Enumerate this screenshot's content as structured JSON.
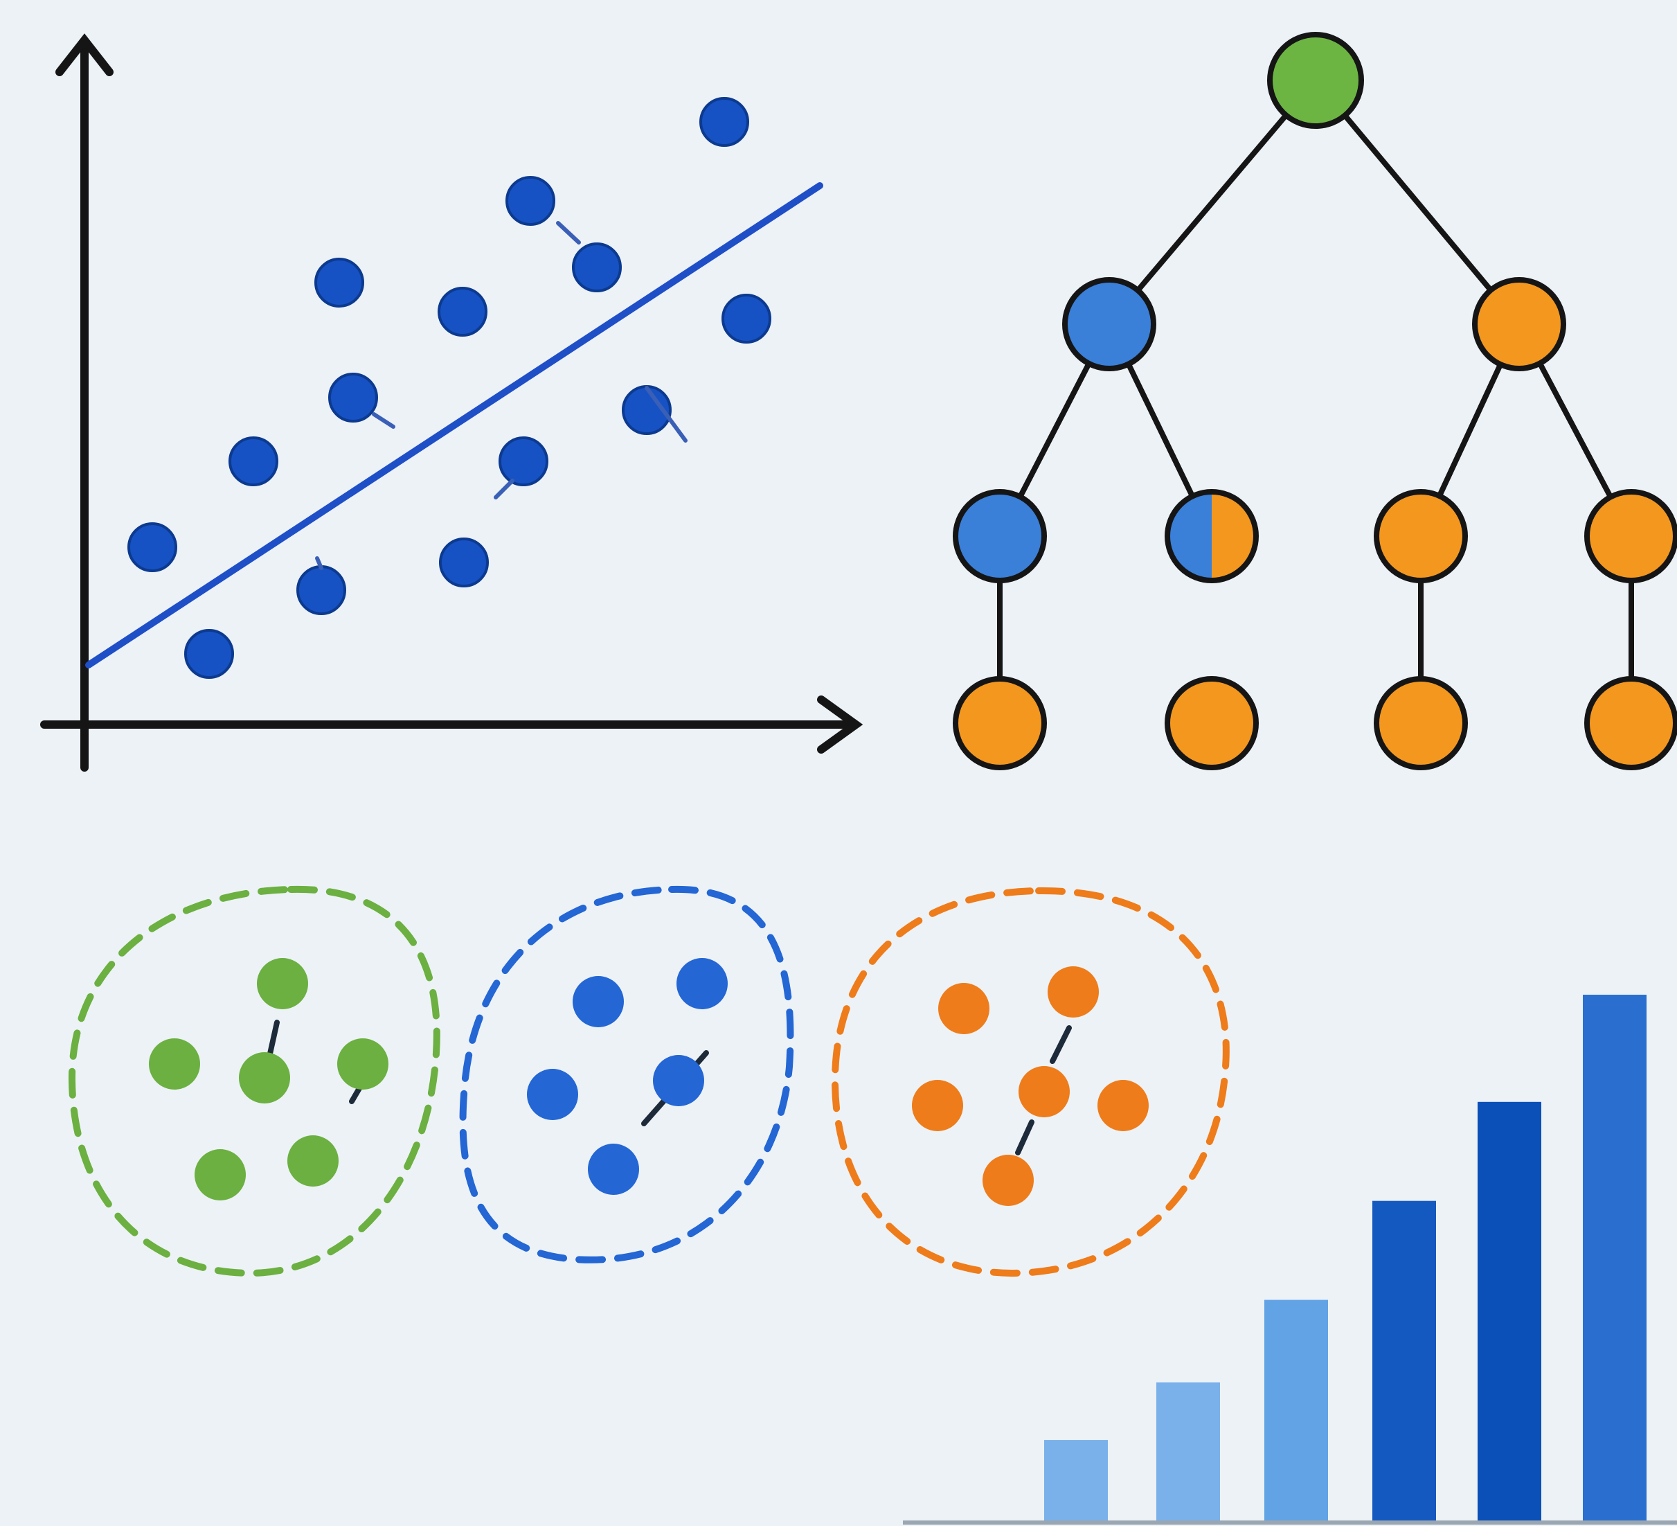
{
  "colors": {
    "background": "#edf2f7",
    "ink": "#151515",
    "blue_point": "#1652c4",
    "regression_line": "#1f4fc7",
    "tree_green": "#6db543",
    "tree_blue": "#3a7fd8",
    "tree_orange": "#f3971f",
    "cluster_green": "#6bb040",
    "cluster_blue": "#2366d4",
    "cluster_orange": "#ee7c1a",
    "bar_light": "#7ab1ea",
    "bar_mid": "#62a3e6",
    "bar_dark": "#1459c0",
    "bar_darker": "#0b4fb8",
    "bar_last": "#2a6fd0"
  },
  "panels": [
    {
      "name": "scatter-regression-panel",
      "kind": "scatter with fitted line",
      "points": 16,
      "axis_arrows": 2
    },
    {
      "name": "decision-tree-panel",
      "kind": "tree diagram",
      "levels": 4,
      "nodes": 11
    },
    {
      "name": "clustering-panel",
      "kind": "three dashed clusters",
      "clusters": [
        "green",
        "blue",
        "orange"
      ]
    },
    {
      "name": "bar-chart-panel",
      "kind": "ascending bars",
      "bars": 6
    }
  ],
  "chart_data": {
    "type": "bar",
    "categories": [
      "",
      "",
      "",
      "",
      "",
      ""
    ],
    "values": [
      1,
      1.7,
      2.7,
      3.9,
      5.1,
      6.4
    ],
    "title": "",
    "xlabel": "",
    "ylabel": ""
  }
}
